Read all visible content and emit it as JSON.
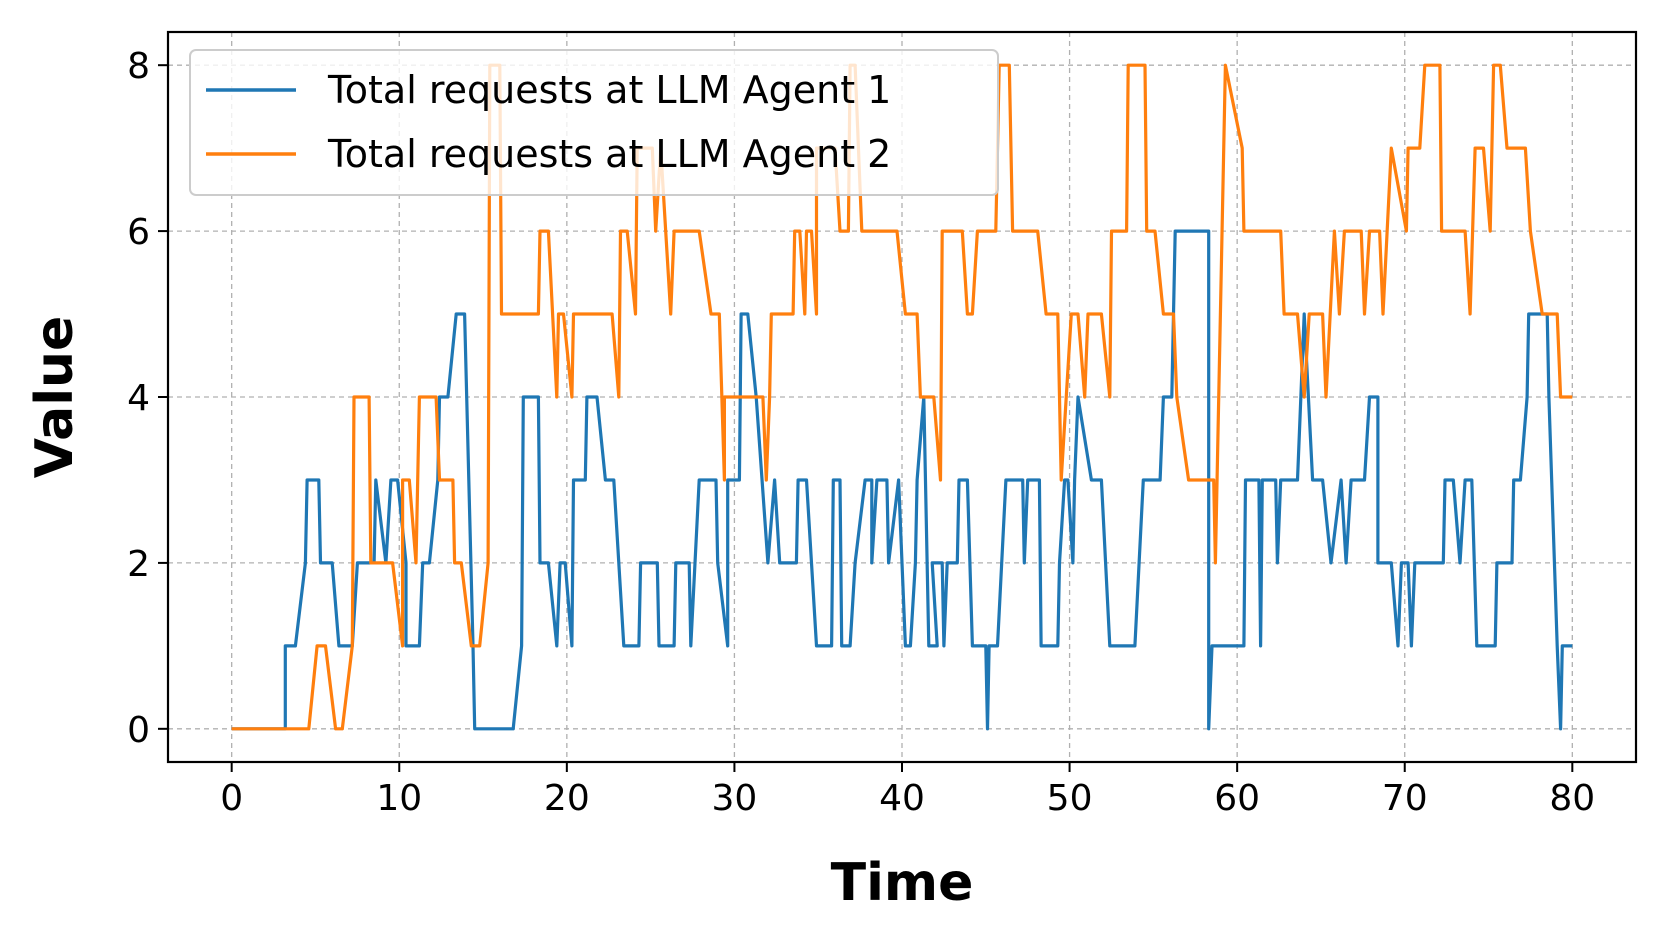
{
  "chart_data": {
    "type": "line",
    "title": "",
    "xlabel": "Time",
    "ylabel": "Value",
    "xlim": [
      -3.8,
      83.8
    ],
    "ylim": [
      -0.4,
      8.4
    ],
    "xticks": [
      0,
      10,
      20,
      30,
      40,
      50,
      60,
      70,
      80
    ],
    "yticks": [
      0,
      2,
      4,
      6,
      8
    ],
    "grid": true,
    "legend_position": "top-left",
    "series": [
      {
        "name": "Total requests at LLM Agent 1",
        "color": "#1f77b4",
        "points": [
          [
            0,
            0
          ],
          [
            3.2,
            0
          ],
          [
            3.2,
            1
          ],
          [
            3.8,
            1
          ],
          [
            4.4,
            2
          ],
          [
            4.5,
            3
          ],
          [
            5.2,
            3
          ],
          [
            5.2,
            3
          ],
          [
            5.2,
            3
          ],
          [
            5.3,
            2
          ],
          [
            5.8,
            2
          ],
          [
            6,
            2
          ],
          [
            6,
            2
          ],
          [
            6.4,
            1
          ],
          [
            6.5,
            1
          ],
          [
            6.7,
            1
          ],
          [
            6.9,
            1
          ],
          [
            7.2,
            1
          ],
          [
            7.5,
            2
          ],
          [
            8.5,
            2
          ],
          [
            8.6,
            3
          ],
          [
            9.2,
            2
          ],
          [
            9.5,
            3
          ],
          [
            9.9,
            3
          ],
          [
            10.4,
            2
          ],
          [
            10.4,
            1
          ],
          [
            11.2,
            1
          ],
          [
            11.4,
            2
          ],
          [
            11.8,
            2
          ],
          [
            12.3,
            3
          ],
          [
            12.4,
            4
          ],
          [
            12.9,
            4
          ],
          [
            13.4,
            5
          ],
          [
            13.9,
            5
          ],
          [
            14.4,
            1
          ],
          [
            14.5,
            0
          ],
          [
            15.5,
            0
          ],
          [
            16.8,
            0
          ],
          [
            17.3,
            1
          ],
          [
            17.4,
            4
          ],
          [
            18.3,
            4
          ],
          [
            18.4,
            2
          ],
          [
            18.9,
            2
          ],
          [
            19.4,
            1
          ],
          [
            19.6,
            2
          ],
          [
            19.9,
            2
          ],
          [
            20.3,
            1
          ],
          [
            20.4,
            3
          ],
          [
            21.1,
            3
          ],
          [
            21.2,
            4
          ],
          [
            21.8,
            4
          ],
          [
            22.3,
            3
          ],
          [
            22.8,
            3
          ],
          [
            23.4,
            1
          ],
          [
            24.3,
            1
          ],
          [
            24.4,
            2
          ],
          [
            24.9,
            2
          ],
          [
            25.4,
            2
          ],
          [
            25.5,
            1
          ],
          [
            26.4,
            1
          ],
          [
            26.5,
            2
          ],
          [
            27.3,
            2
          ],
          [
            27.4,
            1
          ],
          [
            27.9,
            3
          ],
          [
            28.9,
            3
          ],
          [
            29,
            2
          ],
          [
            29.6,
            1
          ],
          [
            29.6,
            3
          ],
          [
            30.3,
            3
          ],
          [
            30.4,
            5
          ],
          [
            30.8,
            5
          ],
          [
            31.3,
            4
          ],
          [
            32,
            2
          ],
          [
            32.4,
            3
          ],
          [
            32.7,
            2
          ],
          [
            33.7,
            2
          ],
          [
            33.8,
            3
          ],
          [
            34.3,
            3
          ],
          [
            34.9,
            1
          ],
          [
            35.8,
            1
          ],
          [
            35.9,
            3
          ],
          [
            36.3,
            3
          ],
          [
            36.4,
            1
          ],
          [
            36.9,
            1
          ],
          [
            37.2,
            2
          ],
          [
            37.8,
            3
          ],
          [
            38.2,
            3
          ],
          [
            38.2,
            2
          ],
          [
            38.5,
            3
          ],
          [
            39.1,
            3
          ],
          [
            39.2,
            2
          ],
          [
            39.8,
            3
          ],
          [
            40.2,
            1
          ],
          [
            40.5,
            1
          ],
          [
            40.8,
            2
          ],
          [
            40.9,
            3
          ],
          [
            41.3,
            4
          ],
          [
            41.6,
            1
          ],
          [
            42.1,
            1
          ],
          [
            41.8,
            2
          ],
          [
            42.4,
            2
          ],
          [
            42.5,
            1
          ],
          [
            42.7,
            2
          ],
          [
            43.3,
            2
          ],
          [
            43.4,
            3
          ],
          [
            43.9,
            3
          ],
          [
            44.2,
            1
          ],
          [
            45,
            1
          ],
          [
            45.1,
            0
          ],
          [
            45.2,
            1
          ],
          [
            45.7,
            1
          ],
          [
            46.2,
            3
          ],
          [
            47.2,
            3
          ],
          [
            47.3,
            2
          ],
          [
            47.5,
            3
          ],
          [
            48.2,
            3
          ],
          [
            48.3,
            1
          ],
          [
            49.3,
            1
          ],
          [
            49.4,
            2
          ],
          [
            49.7,
            3
          ],
          [
            49.9,
            3
          ],
          [
            50.2,
            2
          ],
          [
            50.3,
            3
          ],
          [
            50.5,
            4
          ],
          [
            51.3,
            3
          ],
          [
            51.4,
            3
          ],
          [
            51.9,
            3
          ],
          [
            52.4,
            1
          ],
          [
            53.9,
            1
          ],
          [
            54.4,
            3
          ],
          [
            55.4,
            3
          ],
          [
            55.6,
            4
          ],
          [
            56.1,
            4
          ],
          [
            56.3,
            6
          ],
          [
            58.3,
            6
          ],
          [
            58.3,
            0
          ],
          [
            58.5,
            1
          ],
          [
            59.2,
            1
          ],
          [
            60.4,
            1
          ],
          [
            60.5,
            3
          ],
          [
            61.3,
            3
          ],
          [
            61.4,
            1
          ],
          [
            61.5,
            3
          ],
          [
            62.3,
            3
          ],
          [
            62.4,
            2
          ],
          [
            62.6,
            3
          ],
          [
            63.6,
            3
          ],
          [
            64,
            5
          ],
          [
            64.5,
            3
          ],
          [
            65.1,
            3
          ],
          [
            65.6,
            2
          ],
          [
            66.2,
            3
          ],
          [
            66.5,
            2
          ],
          [
            66.8,
            3
          ],
          [
            67.6,
            3
          ],
          [
            67.9,
            4
          ],
          [
            68.4,
            4
          ],
          [
            68.4,
            2
          ],
          [
            69.2,
            2
          ],
          [
            69.6,
            1
          ],
          [
            69.8,
            2
          ],
          [
            70.2,
            2
          ],
          [
            70.4,
            1
          ],
          [
            70.6,
            2
          ],
          [
            72.3,
            2
          ],
          [
            72.4,
            3
          ],
          [
            72.9,
            3
          ],
          [
            73.3,
            2
          ],
          [
            73.6,
            3
          ],
          [
            74,
            3
          ],
          [
            74.3,
            1
          ],
          [
            75.4,
            1
          ],
          [
            75.5,
            2
          ],
          [
            76.2,
            2
          ],
          [
            76.4,
            2
          ],
          [
            76.5,
            3
          ],
          [
            76.9,
            3
          ],
          [
            77.3,
            4
          ],
          [
            77.4,
            5
          ],
          [
            78.1,
            5
          ],
          [
            78.5,
            5
          ],
          [
            78.6,
            4
          ],
          [
            79.1,
            1
          ],
          [
            79.3,
            0
          ],
          [
            79.4,
            1
          ],
          [
            80,
            1
          ]
        ]
      },
      {
        "name": "Total requests at LLM Agent 2",
        "color": "#ff7f0e",
        "points": [
          [
            0,
            0
          ],
          [
            4.6,
            0
          ],
          [
            5.1,
            1
          ],
          [
            5.6,
            1
          ],
          [
            6.2,
            0
          ],
          [
            6.6,
            0
          ],
          [
            7.2,
            1
          ],
          [
            7.3,
            4
          ],
          [
            8.2,
            4
          ],
          [
            8.3,
            2
          ],
          [
            9.6,
            2
          ],
          [
            10.2,
            1
          ],
          [
            10.2,
            3
          ],
          [
            10.6,
            3
          ],
          [
            11,
            2
          ],
          [
            11.2,
            4
          ],
          [
            12.2,
            4
          ],
          [
            12.4,
            3
          ],
          [
            13.2,
            3
          ],
          [
            13.3,
            2
          ],
          [
            13.7,
            2
          ],
          [
            14.3,
            1
          ],
          [
            14.8,
            1
          ],
          [
            15.3,
            2
          ],
          [
            15.4,
            8
          ],
          [
            16,
            8
          ],
          [
            16.1,
            5
          ],
          [
            18.3,
            5
          ],
          [
            18.4,
            6
          ],
          [
            18.9,
            6
          ],
          [
            19.4,
            4
          ],
          [
            19.5,
            5
          ],
          [
            19.8,
            5
          ],
          [
            20.3,
            4
          ],
          [
            20.4,
            5
          ],
          [
            22.7,
            5
          ],
          [
            23.1,
            4
          ],
          [
            23.2,
            6
          ],
          [
            23.6,
            6
          ],
          [
            24.1,
            5
          ],
          [
            24.2,
            7
          ],
          [
            25.1,
            7
          ],
          [
            25.3,
            6
          ],
          [
            25.6,
            7
          ],
          [
            25.9,
            6
          ],
          [
            26.2,
            5
          ],
          [
            26.4,
            6
          ],
          [
            27.9,
            6
          ],
          [
            28.6,
            5
          ],
          [
            29.1,
            5
          ],
          [
            29.4,
            3
          ],
          [
            29.4,
            4
          ],
          [
            31.7,
            4
          ],
          [
            31.9,
            3
          ],
          [
            32.1,
            4
          ],
          [
            32.2,
            5
          ],
          [
            33.5,
            5
          ],
          [
            33.6,
            6
          ],
          [
            33.9,
            6
          ],
          [
            34.2,
            5
          ],
          [
            34.3,
            6
          ],
          [
            34.6,
            6
          ],
          [
            34.9,
            5
          ],
          [
            34.9,
            7
          ],
          [
            36,
            7
          ],
          [
            36.3,
            6
          ],
          [
            36.8,
            6
          ],
          [
            36.9,
            8
          ],
          [
            37.2,
            8
          ],
          [
            37.6,
            6
          ],
          [
            39.7,
            6
          ],
          [
            40.2,
            5
          ],
          [
            40.9,
            5
          ],
          [
            41.1,
            4
          ],
          [
            41.9,
            4
          ],
          [
            42.3,
            3
          ],
          [
            42.4,
            6
          ],
          [
            43.6,
            6
          ],
          [
            43.9,
            5
          ],
          [
            44.2,
            5
          ],
          [
            44.5,
            6
          ],
          [
            45.6,
            6
          ],
          [
            45.8,
            8
          ],
          [
            46.4,
            8
          ],
          [
            46.6,
            6
          ],
          [
            48.1,
            6
          ],
          [
            48.6,
            5
          ],
          [
            49.3,
            5
          ],
          [
            49.5,
            3
          ],
          [
            50.1,
            5
          ],
          [
            50.5,
            5
          ],
          [
            50.9,
            4
          ],
          [
            51.1,
            5
          ],
          [
            51.9,
            5
          ],
          [
            52.4,
            4
          ],
          [
            52.5,
            6
          ],
          [
            53.4,
            6
          ],
          [
            53.5,
            8
          ],
          [
            54.5,
            8
          ],
          [
            54.6,
            6
          ],
          [
            55.1,
            6
          ],
          [
            55.6,
            5
          ],
          [
            56.2,
            5
          ],
          [
            56.4,
            4
          ],
          [
            57.1,
            3
          ],
          [
            58.1,
            3
          ],
          [
            58.6,
            3
          ],
          [
            58.7,
            2
          ],
          [
            59.3,
            8
          ],
          [
            60.3,
            7
          ],
          [
            60.4,
            6
          ],
          [
            62.6,
            6
          ],
          [
            62.8,
            5
          ],
          [
            63.6,
            5
          ],
          [
            64,
            4
          ],
          [
            64.3,
            5
          ],
          [
            65.1,
            5
          ],
          [
            65.3,
            4
          ],
          [
            65.8,
            6
          ],
          [
            66.1,
            5
          ],
          [
            66.4,
            6
          ],
          [
            67.4,
            6
          ],
          [
            67.6,
            5
          ],
          [
            67.9,
            6
          ],
          [
            68.5,
            6
          ],
          [
            68.7,
            5
          ],
          [
            69.2,
            7
          ],
          [
            70.1,
            6
          ],
          [
            70.2,
            7
          ],
          [
            70.9,
            7
          ],
          [
            71.2,
            8
          ],
          [
            72.1,
            8
          ],
          [
            72.2,
            6
          ],
          [
            73.6,
            6
          ],
          [
            73.9,
            5
          ],
          [
            74.2,
            7
          ],
          [
            74.7,
            7
          ],
          [
            75.1,
            6
          ],
          [
            75.3,
            8
          ],
          [
            75.7,
            8
          ],
          [
            76.1,
            7
          ],
          [
            77.2,
            7
          ],
          [
            77.5,
            6
          ],
          [
            78.2,
            5
          ],
          [
            79.1,
            5
          ],
          [
            79.3,
            4
          ],
          [
            80,
            4
          ]
        ]
      }
    ]
  }
}
